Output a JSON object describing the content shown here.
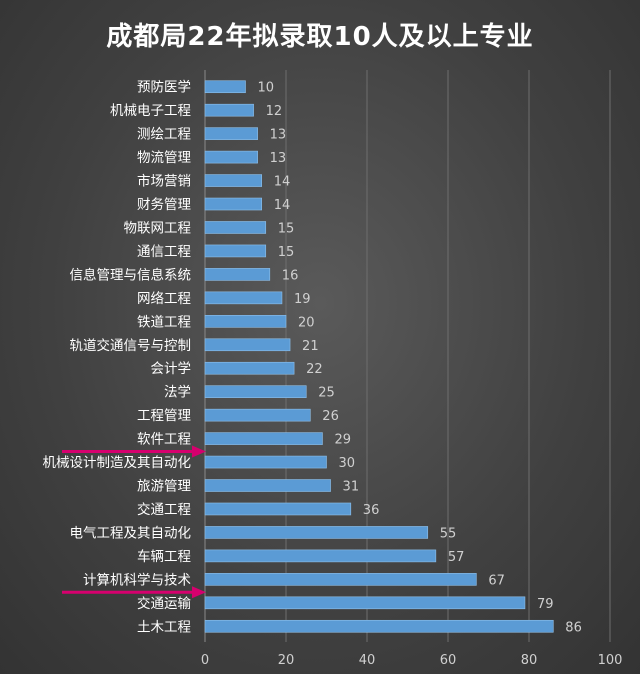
{
  "chart_data": {
    "type": "bar",
    "orientation": "horizontal",
    "title": "成都局22年拟录取10人及以上专业",
    "categories": [
      "预防医学",
      "机械电子工程",
      "测绘工程",
      "物流管理",
      "市场营销",
      "财务管理",
      "物联网工程",
      "通信工程",
      "信息管理与信息系统",
      "网络工程",
      "铁道工程",
      "轨道交通信号与控制",
      "会计学",
      "法学",
      "工程管理",
      "软件工程",
      "机械设计制造及其自动化",
      "旅游管理",
      "交通工程",
      "电气工程及其自动化",
      "车辆工程",
      "计算机科学与技术",
      "交通运输",
      "土木工程"
    ],
    "values": [
      10,
      12,
      13,
      13,
      14,
      14,
      15,
      15,
      16,
      19,
      20,
      21,
      22,
      25,
      26,
      29,
      30,
      31,
      36,
      55,
      57,
      67,
      79,
      86
    ],
    "xlim": [
      0,
      100
    ],
    "x_ticks": [
      0,
      20,
      40,
      60,
      80,
      100
    ],
    "grid": true,
    "data_labels": true,
    "highlighted_categories": [
      "软件工程",
      "计算机科学与技术"
    ]
  },
  "colors": {
    "bar": "#5b9bd5",
    "text": "#ffffff",
    "axis_text": "#d0d0d0",
    "grid": "#6e6e6e",
    "arrow": "#d6006e"
  }
}
